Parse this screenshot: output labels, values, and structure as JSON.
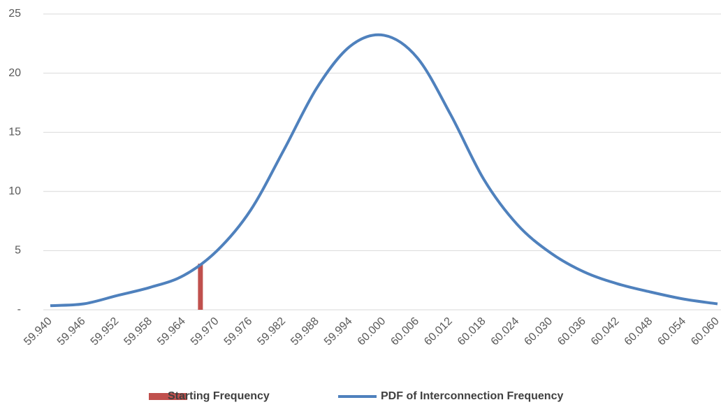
{
  "chart_data": {
    "type": "line",
    "xlim": [
      59.94,
      60.06
    ],
    "xticks": [
      {
        "value": 59.94,
        "label": "59.940"
      },
      {
        "value": 59.946,
        "label": "59.946"
      },
      {
        "value": 59.952,
        "label": "59.952"
      },
      {
        "value": 59.958,
        "label": "59.958"
      },
      {
        "value": 59.964,
        "label": "59.964"
      },
      {
        "value": 59.97,
        "label": "59.970"
      },
      {
        "value": 59.976,
        "label": "59.976"
      },
      {
        "value": 59.982,
        "label": "59.982"
      },
      {
        "value": 59.988,
        "label": "59.988"
      },
      {
        "value": 59.994,
        "label": "59.994"
      },
      {
        "value": 60.0,
        "label": "60.000"
      },
      {
        "value": 60.006,
        "label": "60.006"
      },
      {
        "value": 60.012,
        "label": "60.012"
      },
      {
        "value": 60.018,
        "label": "60.018"
      },
      {
        "value": 60.024,
        "label": "60.024"
      },
      {
        "value": 60.03,
        "label": "60.030"
      },
      {
        "value": 60.036,
        "label": "60.036"
      },
      {
        "value": 60.042,
        "label": "60.042"
      },
      {
        "value": 60.048,
        "label": "60.048"
      },
      {
        "value": 60.054,
        "label": "60.054"
      },
      {
        "value": 60.06,
        "label": "60.060"
      }
    ],
    "ylim": [
      0,
      25
    ],
    "yticks": [
      {
        "value": 0,
        "label": "-"
      },
      5,
      10,
      15,
      20,
      25
    ],
    "grid": true,
    "legend": "bottom",
    "series": [
      {
        "name": "Starting Frequency",
        "type": "bar",
        "color": "#c0504d",
        "x": [
          59.967
        ],
        "values": [
          3.9
        ]
      },
      {
        "name": "PDF of Interconnection Frequency",
        "type": "line",
        "color": "#4f81bd",
        "x": [
          59.94,
          59.946,
          59.952,
          59.958,
          59.964,
          59.97,
          59.976,
          59.982,
          59.988,
          59.994,
          60.0,
          60.006,
          60.012,
          60.018,
          60.024,
          60.03,
          60.036,
          60.042,
          60.048,
          60.054,
          60.06
        ],
        "values": [
          0.35,
          0.5,
          1.2,
          1.9,
          2.9,
          5.0,
          8.4,
          13.5,
          18.8,
          22.3,
          23.2,
          21.3,
          16.5,
          11.0,
          7.2,
          4.8,
          3.2,
          2.2,
          1.5,
          0.9,
          0.5
        ]
      }
    ]
  }
}
